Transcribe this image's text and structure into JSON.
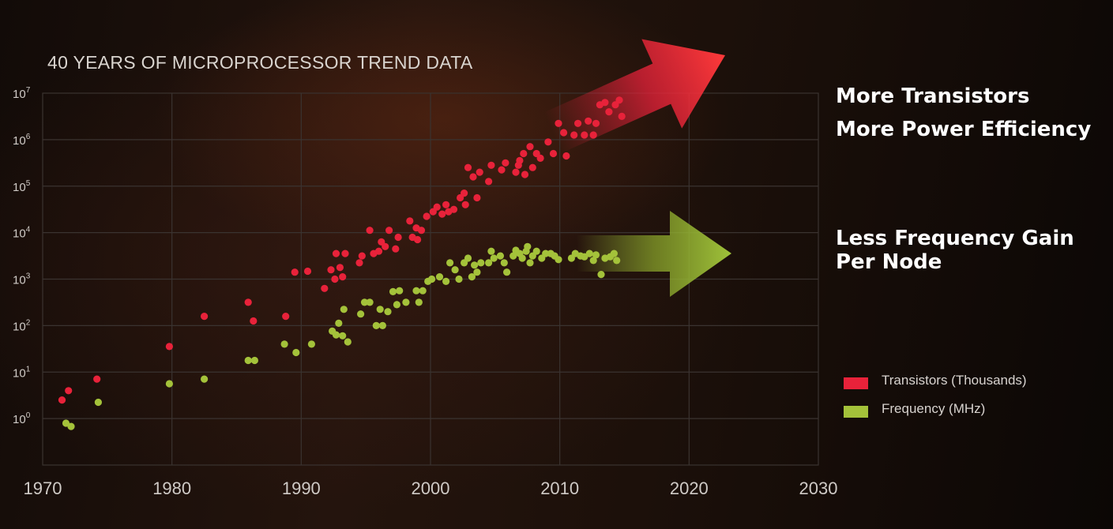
{
  "callouts": {
    "transistors_line1": "More Transistors",
    "transistors_line2": "More Power Efficiency",
    "frequency_line1": "Less Frequency Gain",
    "frequency_line2": "Per Node"
  },
  "colors": {
    "transistors": "#e8223a",
    "frequency": "#a4c23a",
    "grid": "#3a3330",
    "axis_text": "#cfcac6"
  },
  "chart_data": {
    "type": "scatter",
    "title": "40 YEARS OF MICROPROCESSOR TREND DATA",
    "x_ticks": [
      "1970",
      "1980",
      "1990",
      "2000",
      "2010",
      "2020",
      "2030"
    ],
    "x_tick_values": [
      1970,
      1980,
      1990,
      2000,
      2010,
      2020,
      2030
    ],
    "y_ticks": [
      {
        "base": "10",
        "exp": "0",
        "value": 0
      },
      {
        "base": "10",
        "exp": "1",
        "value": 1
      },
      {
        "base": "10",
        "exp": "2",
        "value": 2
      },
      {
        "base": "10",
        "exp": "3",
        "value": 3
      },
      {
        "base": "10",
        "exp": "4",
        "value": 4
      },
      {
        "base": "10",
        "exp": "5",
        "value": 5
      },
      {
        "base": "10",
        "exp": "6",
        "value": 6
      },
      {
        "base": "10",
        "exp": "7",
        "value": 7
      }
    ],
    "xlim": [
      1970,
      2030
    ],
    "y_log_range": [
      -1,
      7
    ],
    "y_scale": "log",
    "grid": true,
    "legend_position": "right",
    "series": [
      {
        "name": "Transistors (Thousands)",
        "color": "#e8223a",
        "points": [
          [
            1971.5,
            0.4
          ],
          [
            1972,
            0.6
          ],
          [
            1974.2,
            0.85
          ],
          [
            1979.8,
            1.55
          ],
          [
            1982.5,
            2.2
          ],
          [
            1985.9,
            2.5
          ],
          [
            1986.3,
            2.1
          ],
          [
            1988.8,
            2.2
          ],
          [
            1989.5,
            3.15
          ],
          [
            1990.5,
            3.17
          ],
          [
            1991.8,
            2.8
          ],
          [
            1992.3,
            3.2
          ],
          [
            1992.6,
            3.0
          ],
          [
            1992.7,
            3.55
          ],
          [
            1993,
            3.25
          ],
          [
            1993.2,
            3.05
          ],
          [
            1993.4,
            3.55
          ],
          [
            1994.5,
            3.35
          ],
          [
            1994.7,
            3.5
          ],
          [
            1995.3,
            4.05
          ],
          [
            1995.6,
            3.55
          ],
          [
            1996,
            3.6
          ],
          [
            1996.2,
            3.8
          ],
          [
            1996.5,
            3.7
          ],
          [
            1996.8,
            4.05
          ],
          [
            1997.3,
            3.65
          ],
          [
            1997.5,
            3.9
          ],
          [
            1998.4,
            4.25
          ],
          [
            1998.6,
            3.9
          ],
          [
            1998.9,
            4.1
          ],
          [
            1999,
            3.85
          ],
          [
            1999.3,
            4.05
          ],
          [
            1999.7,
            4.35
          ],
          [
            2000.2,
            4.45
          ],
          [
            2000.5,
            4.55
          ],
          [
            2000.9,
            4.4
          ],
          [
            2001.2,
            4.6
          ],
          [
            2001.4,
            4.45
          ],
          [
            2001.8,
            4.5
          ],
          [
            2002.3,
            4.75
          ],
          [
            2002.6,
            4.85
          ],
          [
            2002.7,
            4.6
          ],
          [
            2002.9,
            5.4
          ],
          [
            2003.3,
            5.2
          ],
          [
            2003.6,
            4.75
          ],
          [
            2003.8,
            5.3
          ],
          [
            2004.5,
            5.1
          ],
          [
            2004.7,
            5.45
          ],
          [
            2005.5,
            5.35
          ],
          [
            2005.8,
            5.5
          ],
          [
            2006.6,
            5.3
          ],
          [
            2006.8,
            5.45
          ],
          [
            2006.9,
            5.55
          ],
          [
            2007.2,
            5.7
          ],
          [
            2007.3,
            5.25
          ],
          [
            2007.7,
            5.85
          ],
          [
            2007.9,
            5.4
          ],
          [
            2008.2,
            5.7
          ],
          [
            2008.5,
            5.6
          ],
          [
            2009.1,
            5.95
          ],
          [
            2009.5,
            5.7
          ],
          [
            2009.9,
            6.35
          ],
          [
            2010.3,
            6.15
          ],
          [
            2010.5,
            5.65
          ],
          [
            2011.1,
            6.1
          ],
          [
            2011.4,
            6.35
          ],
          [
            2011.9,
            6.1
          ],
          [
            2012.2,
            6.4
          ],
          [
            2012.6,
            6.1
          ],
          [
            2012.8,
            6.35
          ],
          [
            2013.1,
            6.75
          ],
          [
            2013.5,
            6.8
          ],
          [
            2013.8,
            6.6
          ],
          [
            2014.3,
            6.75
          ],
          [
            2014.6,
            6.85
          ],
          [
            2014.8,
            6.5
          ]
        ]
      },
      {
        "name": "Frequency (MHz)",
        "color": "#a4c23a",
        "points": [
          [
            1971.8,
            -0.1
          ],
          [
            1972.2,
            -0.17
          ],
          [
            1974.3,
            0.35
          ],
          [
            1979.8,
            0.75
          ],
          [
            1982.5,
            0.85
          ],
          [
            1985.9,
            1.25
          ],
          [
            1986.4,
            1.25
          ],
          [
            1988.7,
            1.6
          ],
          [
            1989.6,
            1.42
          ],
          [
            1990.8,
            1.6
          ],
          [
            1992.4,
            1.88
          ],
          [
            1992.7,
            1.8
          ],
          [
            1992.9,
            2.05
          ],
          [
            1993.2,
            1.78
          ],
          [
            1993.3,
            2.35
          ],
          [
            1993.6,
            1.65
          ],
          [
            1994.6,
            2.25
          ],
          [
            1994.9,
            2.5
          ],
          [
            1995.3,
            2.5
          ],
          [
            1995.8,
            2.0
          ],
          [
            1996.1,
            2.35
          ],
          [
            1996.3,
            2.0
          ],
          [
            1996.7,
            2.3
          ],
          [
            1997.1,
            2.73
          ],
          [
            1997.4,
            2.45
          ],
          [
            1997.6,
            2.75
          ],
          [
            1998.1,
            2.5
          ],
          [
            1998.9,
            2.75
          ],
          [
            1999.1,
            2.5
          ],
          [
            1999.4,
            2.75
          ],
          [
            1999.8,
            2.95
          ],
          [
            2000.1,
            3.0
          ],
          [
            2000.7,
            3.05
          ],
          [
            2001.2,
            2.95
          ],
          [
            2001.5,
            3.35
          ],
          [
            2001.9,
            3.2
          ],
          [
            2002.2,
            3.0
          ],
          [
            2002.6,
            3.35
          ],
          [
            2002.9,
            3.45
          ],
          [
            2003.2,
            3.05
          ],
          [
            2003.4,
            3.3
          ],
          [
            2003.6,
            3.15
          ],
          [
            2003.9,
            3.35
          ],
          [
            2004.5,
            3.35
          ],
          [
            2004.7,
            3.6
          ],
          [
            2004.9,
            3.45
          ],
          [
            2005.4,
            3.5
          ],
          [
            2005.7,
            3.35
          ],
          [
            2005.9,
            3.15
          ],
          [
            2006.4,
            3.5
          ],
          [
            2006.6,
            3.62
          ],
          [
            2006.9,
            3.55
          ],
          [
            2007.1,
            3.45
          ],
          [
            2007.4,
            3.6
          ],
          [
            2007.5,
            3.7
          ],
          [
            2007.7,
            3.35
          ],
          [
            2007.9,
            3.5
          ],
          [
            2008.2,
            3.6
          ],
          [
            2008.6,
            3.45
          ],
          [
            2008.9,
            3.55
          ],
          [
            2009.3,
            3.55
          ],
          [
            2009.6,
            3.5
          ],
          [
            2009.9,
            3.42
          ],
          [
            2010.9,
            3.45
          ],
          [
            2011.2,
            3.55
          ],
          [
            2011.6,
            3.5
          ],
          [
            2011.9,
            3.48
          ],
          [
            2012.3,
            3.55
          ],
          [
            2012.6,
            3.4
          ],
          [
            2012.8,
            3.52
          ],
          [
            2013.2,
            3.1
          ],
          [
            2013.5,
            3.45
          ],
          [
            2013.9,
            3.48
          ],
          [
            2014.2,
            3.55
          ],
          [
            2014.4,
            3.4
          ]
        ]
      }
    ]
  }
}
